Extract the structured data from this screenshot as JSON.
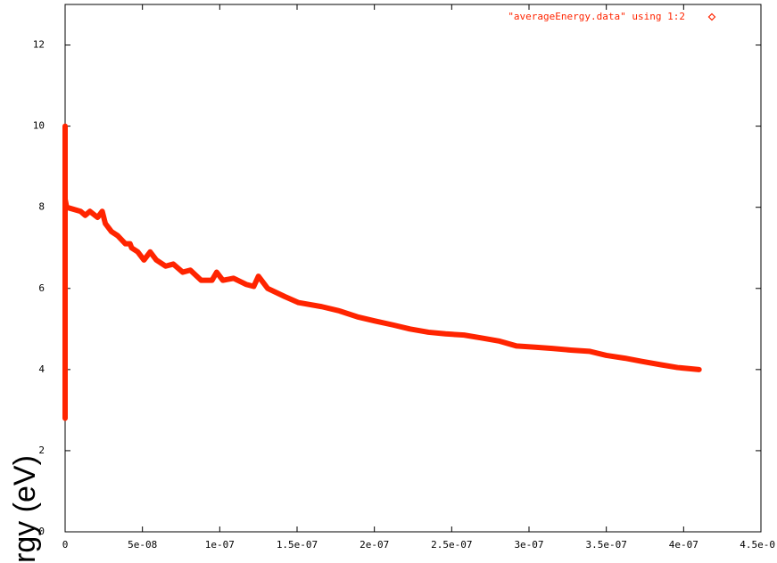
{
  "chart_data": {
    "type": "line",
    "y_label": "rgy (eV)",
    "xlim": [
      0,
      4.5e-07
    ],
    "ylim": [
      0,
      13
    ],
    "xticks": [
      0,
      {
        "value": 5e-08,
        "label": "5e-08"
      },
      {
        "value": 1e-07,
        "label": "1e-07"
      },
      {
        "value": 1.5e-07,
        "label": "1.5e-07"
      },
      {
        "value": 2e-07,
        "label": "2e-07"
      },
      {
        "value": 2.5e-07,
        "label": "2.5e-07"
      },
      {
        "value": 3e-07,
        "label": "3e-07"
      },
      {
        "value": 3.5e-07,
        "label": "3.5e-07"
      },
      {
        "value": 4e-07,
        "label": "4e-07"
      },
      {
        "value": 4.5e-07,
        "label": "4.5e-0"
      }
    ],
    "yticks": [
      0,
      2,
      4,
      6,
      8,
      10,
      12
    ],
    "series": [
      {
        "name": "\"averageEnergy.data\" using 1:2",
        "color": "#ff2400",
        "x": [
          0,
          0,
          0,
          0,
          0,
          0,
          0,
          0,
          0,
          0,
          0,
          0,
          1e-09,
          1e-08,
          1.3e-08,
          1.6e-08,
          2.1e-08,
          2.4e-08,
          2.6e-08,
          3e-08,
          3.4e-08,
          3.9e-08,
          4.2e-08,
          4.3e-08,
          4.7e-08,
          5.1e-08,
          5.5e-08,
          5.9e-08,
          6.5e-08,
          7e-08,
          7.6e-08,
          8.1e-08,
          8.8e-08,
          9.5e-08,
          9.8e-08,
          1.02e-07,
          1.09e-07,
          1.17e-07,
          1.22e-07,
          1.25e-07,
          1.31e-07,
          1.42e-07,
          1.51e-07,
          1.66e-07,
          1.77e-07,
          1.89e-07,
          2e-07,
          2.12e-07,
          2.23e-07,
          2.35e-07,
          2.46e-07,
          2.58e-07,
          2.69e-07,
          2.81e-07,
          2.92e-07,
          3.04e-07,
          3.15e-07,
          3.27e-07,
          3.39e-07,
          3.5e-07,
          3.62e-07,
          3.73e-07,
          3.85e-07,
          3.96e-07,
          4.1e-07
        ],
        "values": [
          2.8,
          3.6,
          5.3,
          5.7,
          6.2,
          7.5,
          8.7,
          9.1,
          9.5,
          10,
          9.7,
          8.2,
          8.0,
          7.9,
          7.8,
          7.9,
          7.75,
          7.9,
          7.6,
          7.4,
          7.3,
          7.1,
          7.1,
          7.0,
          6.9,
          6.7,
          6.9,
          6.7,
          6.55,
          6.6,
          6.4,
          6.45,
          6.2,
          6.2,
          6.4,
          6.2,
          6.25,
          6.1,
          6.05,
          6.3,
          6.0,
          5.8,
          5.65,
          5.55,
          5.45,
          5.3,
          5.2,
          5.1,
          5.0,
          4.92,
          4.88,
          4.85,
          4.78,
          4.7,
          4.58,
          4.55,
          4.52,
          4.48,
          4.45,
          4.35,
          4.28,
          4.2,
          4.12,
          4.05,
          4.0
        ]
      }
    ]
  }
}
